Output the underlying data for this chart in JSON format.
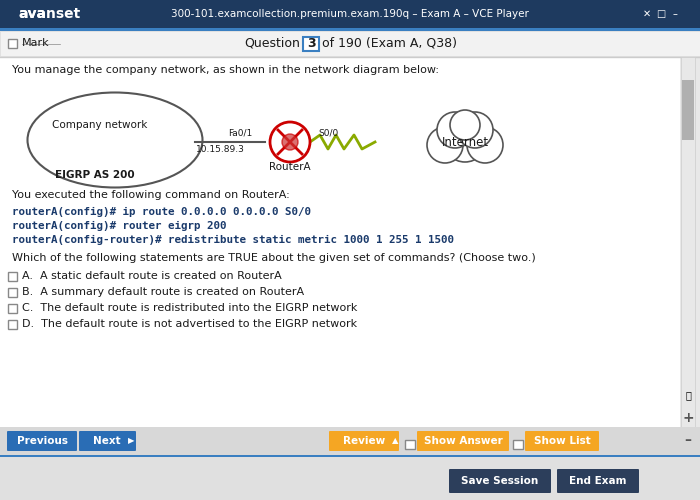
{
  "title_bar_color": "#1e3a5f",
  "title_bar_text": "300-101.examcollection.premium.exam.190q – Exam A – VCE Player",
  "title_bar_logo": "avanset",
  "window_bg": "#e8e8e8",
  "content_bg": "#ffffff",
  "question_bar_bg": "#f0f0f0",
  "question_bar_text": "Question",
  "question_number": "3",
  "question_total": "of 190 (Exam A, Q38)",
  "mark_label": "Mark",
  "intro_text": "You manage the company network, as shown in the network diagram below:",
  "command_intro": "You executed the following command on RouterA:",
  "commands": [
    "routerA(config)# ip route 0.0.0.0 0.0.0.0 S0/0",
    "routerA(config)# router eigrp 200",
    "routerA(config-router)# redistribute static metric 1000 1 255 1 1500"
  ],
  "question_text": "Which of the following statements are TRUE about the given set of commands? (Choose two.)",
  "choices": [
    "A.  A static default route is created on RouterA",
    "B.  A summary default route is created on RouterA",
    "C.  The default route is redistributed into the EIGRP network",
    "D.  The default route is not advertised to the EIGRP network"
  ],
  "network_labels": {
    "company": "Company network",
    "eigrp": "EIGRP AS 200",
    "fa": "Fa0/1",
    "s00": "S0/0",
    "ip": "10.15.89.3",
    "router": "RouterA",
    "internet": "Internet"
  },
  "btn_prev_color": "#2a6db5",
  "btn_prev_text": "Previous",
  "btn_next_color": "#2a6db5",
  "btn_next_text": "Next",
  "btn_review_color": "#f5a623",
  "btn_review_text": "Review",
  "btn_answer_color": "#f5a623",
  "btn_answer_text": "Show Answer",
  "btn_list_color": "#f5a623",
  "btn_list_text": "Show List",
  "btn_save_color": "#2c3e5b",
  "btn_save_text": "Save Session",
  "btn_end_color": "#2c3e5b",
  "btn_end_text": "End Exam",
  "scrollbar_color": "#cccccc",
  "bottom_bar_color": "#d0d0d0",
  "text_color": "#1a1a1a",
  "command_color": "#1a3a6b",
  "highlight_color": "#b3c7e6"
}
